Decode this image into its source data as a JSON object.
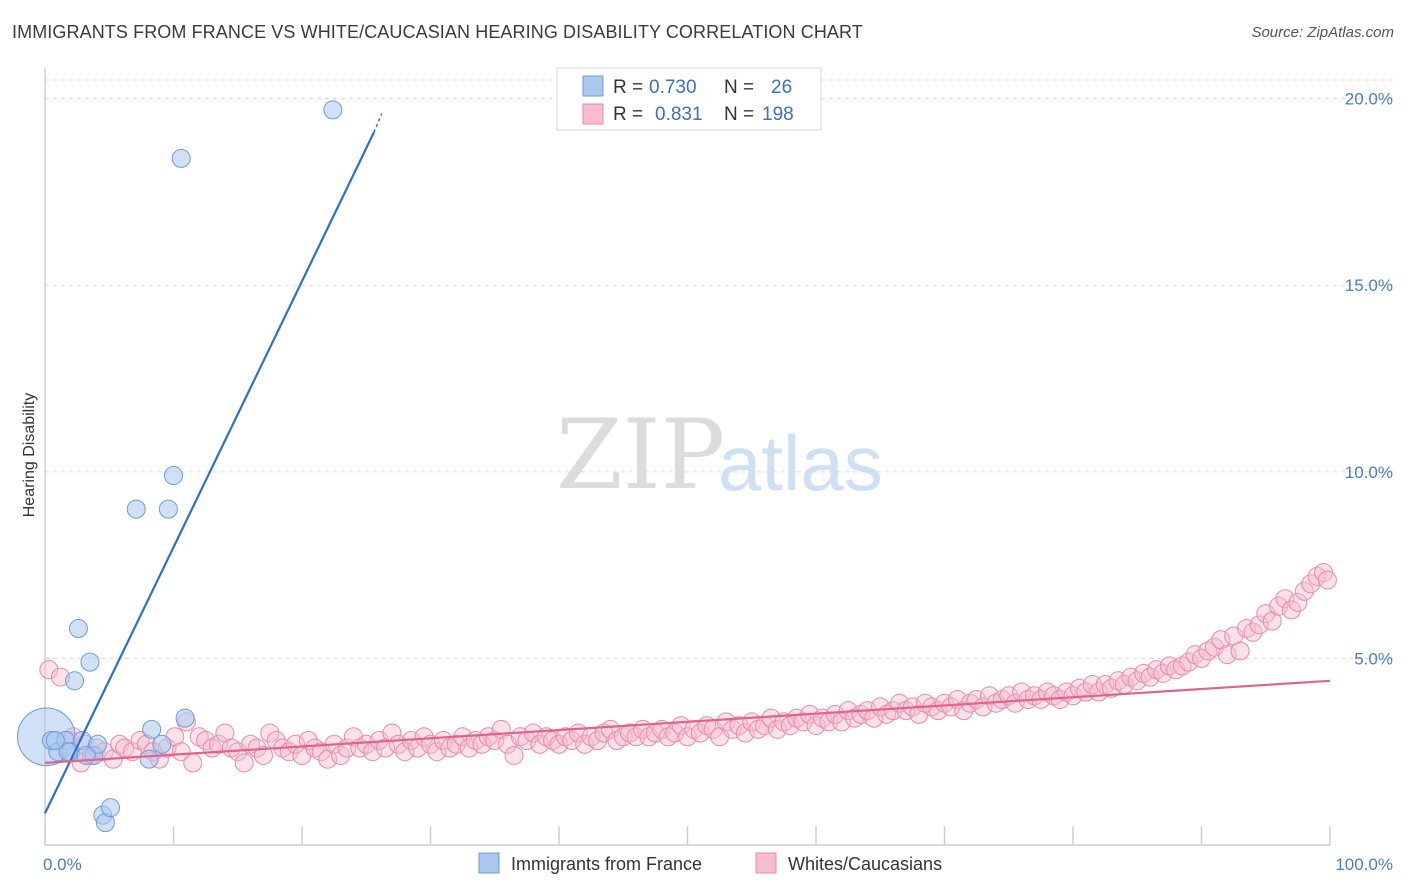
{
  "title": "IMMIGRANTS FROM FRANCE VS WHITE/CAUCASIAN HEARING DISABILITY CORRELATION CHART",
  "source": "Source: ZipAtlas.com",
  "watermark": {
    "zip": "ZIP",
    "atlas": "atlas"
  },
  "colors": {
    "blue_fill": "#a9c8f0",
    "blue_stroke": "#6f9ad6",
    "blue_line": "#2f6fc9",
    "pink_fill": "#f7bcd0",
    "pink_stroke": "#e88aa8",
    "pink_line": "#e0628f",
    "grid": "#d8d8d8",
    "axis_text": "#4a7cc7"
  },
  "legend": {
    "series1": {
      "r_label": "R =",
      "r_value": "0.730",
      "n_label": "N =",
      "n_value": "26"
    },
    "series2": {
      "r_label": "R =",
      "r_value": "0.831",
      "n_label": "N =",
      "n_value": "198"
    }
  },
  "chart_data": {
    "type": "scatter",
    "title": "IMMIGRANTS FROM FRANCE VS WHITE/CAUCASIAN HEARING DISABILITY CORRELATION CHART",
    "xlabel": "",
    "ylabel": "Hearing Disability",
    "xlim": [
      0,
      100
    ],
    "ylim": [
      0,
      20.5
    ],
    "x_tick_labels": [
      "0.0%",
      "100.0%"
    ],
    "y_ticks": [
      5,
      10,
      15,
      20
    ],
    "y_tick_labels": [
      "5.0%",
      "10.0%",
      "15.0%",
      "20.0%"
    ],
    "legend_position": "top-center",
    "series": [
      {
        "name": "Immigrants from France",
        "color": "#a9c8f0",
        "points": [
          [
            0.1,
            2.9,
            3.2
          ],
          [
            0.5,
            2.8,
            1
          ],
          [
            1.0,
            2.5,
            1
          ],
          [
            1.6,
            2.8,
            1
          ],
          [
            2.0,
            2.5,
            1
          ],
          [
            2.3,
            4.4,
            1
          ],
          [
            2.6,
            5.8,
            1
          ],
          [
            2.9,
            2.8,
            1
          ],
          [
            3.5,
            4.9,
            1
          ],
          [
            3.8,
            2.4,
            1
          ],
          [
            4.1,
            2.7,
            1
          ],
          [
            4.5,
            0.8,
            1
          ],
          [
            4.7,
            0.6,
            1
          ],
          [
            5.1,
            1.0,
            1
          ],
          [
            7.1,
            9.0,
            1
          ],
          [
            8.1,
            2.3,
            1
          ],
          [
            8.3,
            3.1,
            1
          ],
          [
            9.1,
            2.7,
            1
          ],
          [
            9.6,
            9.0,
            1
          ],
          [
            10.0,
            9.9,
            1
          ],
          [
            10.6,
            18.4,
            1
          ],
          [
            10.9,
            3.4,
            1
          ],
          [
            22.4,
            19.7,
            1
          ],
          [
            1.8,
            2.5,
            1
          ],
          [
            3.2,
            2.4,
            1
          ],
          [
            0.8,
            2.8,
            1
          ]
        ],
        "trend": {
          "x": [
            0,
            25.6
          ],
          "y": [
            0.85,
            19.1
          ],
          "dashed_to": [
            26.2,
            19.6
          ]
        }
      },
      {
        "name": "Whites/Caucasians",
        "color": "#f7bcd0",
        "points": [
          [
            0.3,
            4.7,
            1
          ],
          [
            1.2,
            4.5,
            1
          ],
          [
            1.9,
            2.8,
            1
          ],
          [
            2.2,
            2.9,
            1
          ],
          [
            2.8,
            2.2,
            1
          ],
          [
            3.1,
            2.7,
            1
          ],
          [
            3.6,
            2.4,
            1
          ],
          [
            4.0,
            2.6,
            1
          ],
          [
            4.6,
            2.5,
            1
          ],
          [
            5.3,
            2.3,
            1
          ],
          [
            5.8,
            2.7,
            1
          ],
          [
            6.2,
            2.6,
            1
          ],
          [
            6.8,
            2.5,
            1
          ],
          [
            7.4,
            2.8,
            1
          ],
          [
            7.9,
            2.7,
            1
          ],
          [
            8.4,
            2.5,
            1
          ],
          [
            8.9,
            2.3,
            1
          ],
          [
            9.5,
            2.6,
            1
          ],
          [
            10.1,
            2.9,
            1
          ],
          [
            10.6,
            2.5,
            1
          ],
          [
            11.0,
            3.3,
            1
          ],
          [
            11.5,
            2.2,
            1
          ],
          [
            12.0,
            2.9,
            1
          ],
          [
            12.5,
            2.8,
            1
          ],
          [
            13.0,
            2.6,
            1
          ],
          [
            13.5,
            2.7,
            1
          ],
          [
            14.0,
            3.0,
            1
          ],
          [
            14.5,
            2.6,
            1
          ],
          [
            15.0,
            2.5,
            1
          ],
          [
            15.5,
            2.2,
            1
          ],
          [
            16.0,
            2.7,
            1
          ],
          [
            16.5,
            2.6,
            1
          ],
          [
            17.0,
            2.4,
            1
          ],
          [
            17.5,
            3.0,
            1
          ],
          [
            18.0,
            2.8,
            1
          ],
          [
            18.5,
            2.6,
            1
          ],
          [
            19.0,
            2.5,
            1
          ],
          [
            19.5,
            2.7,
            1
          ],
          [
            20.0,
            2.4,
            1
          ],
          [
            20.5,
            2.8,
            1
          ],
          [
            21.0,
            2.6,
            1
          ],
          [
            21.5,
            2.5,
            1
          ],
          [
            22.0,
            2.3,
            1
          ],
          [
            22.5,
            2.7,
            1
          ],
          [
            23.0,
            2.4,
            1
          ],
          [
            23.5,
            2.6,
            1
          ],
          [
            24.0,
            2.9,
            1
          ],
          [
            24.5,
            2.6,
            1
          ],
          [
            25.0,
            2.7,
            1
          ],
          [
            25.5,
            2.5,
            1
          ],
          [
            26.0,
            2.8,
            1
          ],
          [
            26.5,
            2.6,
            1
          ],
          [
            27.0,
            3.0,
            1
          ],
          [
            27.5,
            2.7,
            1
          ],
          [
            28.0,
            2.5,
            1
          ],
          [
            28.5,
            2.8,
            1
          ],
          [
            29.0,
            2.6,
            1
          ],
          [
            29.5,
            2.9,
            1
          ],
          [
            30.0,
            2.7,
            1
          ],
          [
            30.5,
            2.5,
            1
          ],
          [
            31.0,
            2.8,
            1
          ],
          [
            31.5,
            2.6,
            1
          ],
          [
            32.0,
            2.7,
            1
          ],
          [
            32.5,
            2.9,
            1
          ],
          [
            33.0,
            2.6,
            1
          ],
          [
            33.5,
            2.8,
            1
          ],
          [
            34.0,
            2.7,
            1
          ],
          [
            34.5,
            2.9,
            1
          ],
          [
            35.0,
            2.8,
            1
          ],
          [
            35.5,
            3.1,
            1
          ],
          [
            36.0,
            2.7,
            1
          ],
          [
            36.5,
            2.4,
            1
          ],
          [
            37.0,
            2.9,
            1
          ],
          [
            37.5,
            2.8,
            1
          ],
          [
            38.0,
            3.0,
            1
          ],
          [
            38.5,
            2.7,
            1
          ],
          [
            39.0,
            2.9,
            1
          ],
          [
            39.5,
            2.8,
            1
          ],
          [
            40.0,
            2.7,
            1
          ],
          [
            40.5,
            2.9,
            1
          ],
          [
            41.0,
            2.8,
            1
          ],
          [
            41.5,
            3.0,
            1
          ],
          [
            42.0,
            2.7,
            1
          ],
          [
            42.5,
            2.9,
            1
          ],
          [
            43.0,
            2.8,
            1
          ],
          [
            43.5,
            3.0,
            1
          ],
          [
            44.0,
            3.1,
            1
          ],
          [
            44.5,
            2.8,
            1
          ],
          [
            45.0,
            2.9,
            1
          ],
          [
            45.5,
            3.0,
            1
          ],
          [
            46.0,
            2.9,
            1
          ],
          [
            46.5,
            3.1,
            1
          ],
          [
            47.0,
            2.9,
            1
          ],
          [
            47.5,
            3.0,
            1
          ],
          [
            48.0,
            3.1,
            1
          ],
          [
            48.5,
            2.9,
            1
          ],
          [
            49.0,
            3.0,
            1
          ],
          [
            49.5,
            3.2,
            1
          ],
          [
            50.0,
            2.9,
            1
          ],
          [
            50.5,
            3.1,
            1
          ],
          [
            51.0,
            3.0,
            1
          ],
          [
            51.5,
            3.2,
            1
          ],
          [
            52.0,
            3.1,
            1
          ],
          [
            52.5,
            2.9,
            1
          ],
          [
            53.0,
            3.3,
            1
          ],
          [
            53.5,
            3.1,
            1
          ],
          [
            54.0,
            3.2,
            1
          ],
          [
            54.5,
            3.0,
            1
          ],
          [
            55.0,
            3.3,
            1
          ],
          [
            55.5,
            3.1,
            1
          ],
          [
            56.0,
            3.2,
            1
          ],
          [
            56.5,
            3.4,
            1
          ],
          [
            57.0,
            3.1,
            1
          ],
          [
            57.5,
            3.3,
            1
          ],
          [
            58.0,
            3.2,
            1
          ],
          [
            58.5,
            3.4,
            1
          ],
          [
            59.0,
            3.3,
            1
          ],
          [
            59.5,
            3.5,
            1
          ],
          [
            60.0,
            3.2,
            1
          ],
          [
            60.5,
            3.4,
            1
          ],
          [
            61.0,
            3.3,
            1
          ],
          [
            61.5,
            3.5,
            1
          ],
          [
            62.0,
            3.3,
            1
          ],
          [
            62.5,
            3.6,
            1
          ],
          [
            63.0,
            3.4,
            1
          ],
          [
            63.5,
            3.5,
            1
          ],
          [
            64.0,
            3.6,
            1
          ],
          [
            64.5,
            3.4,
            1
          ],
          [
            65.0,
            3.7,
            1
          ],
          [
            65.5,
            3.5,
            1
          ],
          [
            66.0,
            3.6,
            1
          ],
          [
            66.5,
            3.8,
            1
          ],
          [
            67.0,
            3.6,
            1
          ],
          [
            67.5,
            3.7,
            1
          ],
          [
            68.0,
            3.5,
            1
          ],
          [
            68.5,
            3.8,
            1
          ],
          [
            69.0,
            3.7,
            1
          ],
          [
            69.5,
            3.6,
            1
          ],
          [
            70.0,
            3.8,
            1
          ],
          [
            70.5,
            3.7,
            1
          ],
          [
            71.0,
            3.9,
            1
          ],
          [
            71.5,
            3.6,
            1
          ],
          [
            72.0,
            3.8,
            1
          ],
          [
            72.5,
            3.9,
            1
          ],
          [
            73.0,
            3.7,
            1
          ],
          [
            73.5,
            4.0,
            1
          ],
          [
            74.0,
            3.8,
            1
          ],
          [
            74.5,
            3.9,
            1
          ],
          [
            75.0,
            4.0,
            1
          ],
          [
            75.5,
            3.8,
            1
          ],
          [
            76.0,
            4.1,
            1
          ],
          [
            76.5,
            3.9,
            1
          ],
          [
            77.0,
            4.0,
            1
          ],
          [
            77.5,
            3.9,
            1
          ],
          [
            78.0,
            4.1,
            1
          ],
          [
            78.5,
            4.0,
            1
          ],
          [
            79.0,
            3.9,
            1
          ],
          [
            79.5,
            4.1,
            1
          ],
          [
            80.0,
            4.0,
            1
          ],
          [
            80.5,
            4.2,
            1
          ],
          [
            81.0,
            4.1,
            1
          ],
          [
            81.5,
            4.3,
            1
          ],
          [
            82.0,
            4.1,
            1
          ],
          [
            82.5,
            4.3,
            1
          ],
          [
            83.0,
            4.2,
            1
          ],
          [
            83.5,
            4.4,
            1
          ],
          [
            84.0,
            4.3,
            1
          ],
          [
            84.5,
            4.5,
            1
          ],
          [
            85.0,
            4.4,
            1
          ],
          [
            85.5,
            4.6,
            1
          ],
          [
            86.0,
            4.5,
            1
          ],
          [
            86.5,
            4.7,
            1
          ],
          [
            87.0,
            4.6,
            1
          ],
          [
            87.5,
            4.8,
            1
          ],
          [
            88.0,
            4.7,
            1
          ],
          [
            88.5,
            4.8,
            1
          ],
          [
            89.0,
            4.9,
            1
          ],
          [
            89.5,
            5.1,
            1
          ],
          [
            90.0,
            5.0,
            1
          ],
          [
            90.5,
            5.2,
            1
          ],
          [
            91.0,
            5.3,
            1
          ],
          [
            91.5,
            5.5,
            1
          ],
          [
            92.0,
            5.1,
            1
          ],
          [
            92.5,
            5.6,
            1
          ],
          [
            93.0,
            5.2,
            1
          ],
          [
            93.5,
            5.8,
            1
          ],
          [
            94.0,
            5.7,
            1
          ],
          [
            94.5,
            5.9,
            1
          ],
          [
            95.0,
            6.2,
            1
          ],
          [
            95.5,
            6.0,
            1
          ],
          [
            96.0,
            6.4,
            1
          ],
          [
            96.5,
            6.6,
            1
          ],
          [
            97.0,
            6.3,
            1
          ],
          [
            97.5,
            6.5,
            1
          ],
          [
            98.0,
            6.8,
            1
          ],
          [
            98.5,
            7.0,
            1
          ],
          [
            99.0,
            7.2,
            1
          ],
          [
            99.5,
            7.3,
            1
          ],
          [
            99.8,
            7.1,
            1
          ]
        ],
        "trend": {
          "x": [
            0,
            100
          ],
          "y": [
            2.2,
            4.4
          ]
        }
      }
    ]
  }
}
